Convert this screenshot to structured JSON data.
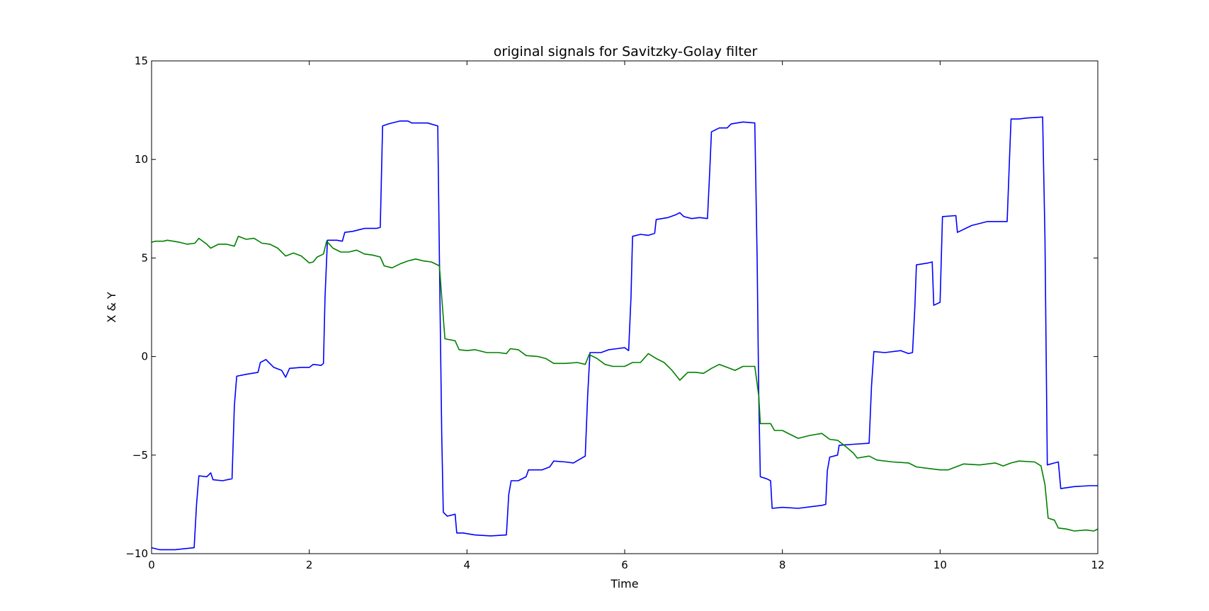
{
  "chart_data": {
    "type": "line",
    "title": "original signals for Savitzky-Golay filter",
    "xlabel": "Time",
    "ylabel": "X & Y",
    "xlim": [
      0,
      12
    ],
    "ylim": [
      -10,
      15
    ],
    "xticks": [
      0,
      2,
      4,
      6,
      8,
      10,
      12
    ],
    "yticks": [
      -10,
      -5,
      0,
      5,
      10,
      15
    ],
    "xtick_labels": [
      "0",
      "2",
      "4",
      "6",
      "8",
      "10",
      "12"
    ],
    "ytick_labels": [
      "−10",
      "−5",
      "0",
      "5",
      "10",
      "15"
    ],
    "grid": false,
    "legend": "none",
    "series": [
      {
        "color": "#0000ff",
        "points": [
          [
            0,
            -9.7
          ],
          [
            0.1,
            -9.8
          ],
          [
            0.3,
            -9.8
          ],
          [
            0.54,
            -9.7
          ],
          [
            0.57,
            -7.5
          ],
          [
            0.6,
            -6.05
          ],
          [
            0.7,
            -6.1
          ],
          [
            0.75,
            -5.9
          ],
          [
            0.78,
            -6.25
          ],
          [
            0.9,
            -6.3
          ],
          [
            1.02,
            -6.2
          ],
          [
            1.05,
            -2.5
          ],
          [
            1.08,
            -1.0
          ],
          [
            1.2,
            -0.9
          ],
          [
            1.35,
            -0.8
          ],
          [
            1.38,
            -0.3
          ],
          [
            1.45,
            -0.15
          ],
          [
            1.55,
            -0.55
          ],
          [
            1.65,
            -0.7
          ],
          [
            1.7,
            -1.05
          ],
          [
            1.75,
            -0.6
          ],
          [
            1.9,
            -0.55
          ],
          [
            2.0,
            -0.55
          ],
          [
            2.05,
            -0.4
          ],
          [
            2.15,
            -0.45
          ],
          [
            2.18,
            -0.35
          ],
          [
            2.2,
            3.0
          ],
          [
            2.23,
            5.9
          ],
          [
            2.35,
            5.9
          ],
          [
            2.42,
            5.85
          ],
          [
            2.45,
            6.3
          ],
          [
            2.55,
            6.35
          ],
          [
            2.7,
            6.5
          ],
          [
            2.85,
            6.5
          ],
          [
            2.9,
            6.55
          ],
          [
            2.93,
            11.7
          ],
          [
            3.0,
            11.8
          ],
          [
            3.15,
            11.95
          ],
          [
            3.25,
            11.95
          ],
          [
            3.3,
            11.85
          ],
          [
            3.5,
            11.85
          ],
          [
            3.63,
            11.7
          ],
          [
            3.65,
            5.0
          ],
          [
            3.68,
            -4.0
          ],
          [
            3.7,
            -7.9
          ],
          [
            3.75,
            -8.1
          ],
          [
            3.85,
            -8.0
          ],
          [
            3.87,
            -8.95
          ],
          [
            3.95,
            -8.95
          ],
          [
            4.1,
            -9.05
          ],
          [
            4.3,
            -9.1
          ],
          [
            4.5,
            -9.05
          ],
          [
            4.53,
            -7.0
          ],
          [
            4.56,
            -6.3
          ],
          [
            4.65,
            -6.3
          ],
          [
            4.75,
            -6.1
          ],
          [
            4.78,
            -5.75
          ],
          [
            4.95,
            -5.75
          ],
          [
            5.05,
            -5.6
          ],
          [
            5.1,
            -5.3
          ],
          [
            5.25,
            -5.35
          ],
          [
            5.35,
            -5.4
          ],
          [
            5.5,
            -5.05
          ],
          [
            5.53,
            -2.0
          ],
          [
            5.56,
            0.2
          ],
          [
            5.7,
            0.2
          ],
          [
            5.8,
            0.35
          ],
          [
            5.9,
            0.4
          ],
          [
            6.0,
            0.45
          ],
          [
            6.05,
            0.3
          ],
          [
            6.08,
            3.0
          ],
          [
            6.1,
            6.1
          ],
          [
            6.2,
            6.2
          ],
          [
            6.3,
            6.15
          ],
          [
            6.38,
            6.25
          ],
          [
            6.4,
            6.95
          ],
          [
            6.55,
            7.05
          ],
          [
            6.65,
            7.2
          ],
          [
            6.7,
            7.3
          ],
          [
            6.75,
            7.1
          ],
          [
            6.85,
            7.0
          ],
          [
            6.95,
            7.05
          ],
          [
            7.05,
            7.0
          ],
          [
            7.08,
            9.5
          ],
          [
            7.1,
            11.4
          ],
          [
            7.2,
            11.6
          ],
          [
            7.3,
            11.6
          ],
          [
            7.35,
            11.8
          ],
          [
            7.5,
            11.9
          ],
          [
            7.65,
            11.85
          ],
          [
            7.68,
            5.0
          ],
          [
            7.7,
            -2.0
          ],
          [
            7.72,
            -6.1
          ],
          [
            7.8,
            -6.2
          ],
          [
            7.85,
            -6.3
          ],
          [
            7.87,
            -7.7
          ],
          [
            8.0,
            -7.65
          ],
          [
            8.2,
            -7.7
          ],
          [
            8.5,
            -7.55
          ],
          [
            8.55,
            -7.5
          ],
          [
            8.57,
            -5.8
          ],
          [
            8.6,
            -5.1
          ],
          [
            8.7,
            -5.0
          ],
          [
            8.72,
            -4.5
          ],
          [
            8.9,
            -4.45
          ],
          [
            9.1,
            -4.4
          ],
          [
            9.13,
            -1.5
          ],
          [
            9.16,
            0.25
          ],
          [
            9.3,
            0.2
          ],
          [
            9.5,
            0.3
          ],
          [
            9.6,
            0.15
          ],
          [
            9.65,
            0.2
          ],
          [
            9.68,
            2.5
          ],
          [
            9.7,
            4.65
          ],
          [
            9.85,
            4.75
          ],
          [
            9.9,
            4.8
          ],
          [
            9.92,
            2.6
          ],
          [
            10.0,
            2.75
          ],
          [
            10.03,
            7.1
          ],
          [
            10.2,
            7.15
          ],
          [
            10.22,
            6.3
          ],
          [
            10.4,
            6.65
          ],
          [
            10.6,
            6.85
          ],
          [
            10.85,
            6.85
          ],
          [
            10.88,
            10.0
          ],
          [
            10.9,
            12.05
          ],
          [
            11.0,
            12.05
          ],
          [
            11.1,
            12.1
          ],
          [
            11.3,
            12.15
          ],
          [
            11.33,
            6.0
          ],
          [
            11.36,
            -5.5
          ],
          [
            11.45,
            -5.4
          ],
          [
            11.5,
            -5.35
          ],
          [
            11.53,
            -6.7
          ],
          [
            11.7,
            -6.6
          ],
          [
            11.9,
            -6.55
          ],
          [
            12.0,
            -6.55
          ]
        ]
      },
      {
        "color": "#008000",
        "points": [
          [
            0,
            5.8
          ],
          [
            0.05,
            5.85
          ],
          [
            0.15,
            5.85
          ],
          [
            0.2,
            5.9
          ],
          [
            0.35,
            5.8
          ],
          [
            0.45,
            5.7
          ],
          [
            0.55,
            5.75
          ],
          [
            0.6,
            6.0
          ],
          [
            0.7,
            5.7
          ],
          [
            0.75,
            5.5
          ],
          [
            0.85,
            5.7
          ],
          [
            0.95,
            5.7
          ],
          [
            1.05,
            5.6
          ],
          [
            1.1,
            6.1
          ],
          [
            1.2,
            5.95
          ],
          [
            1.3,
            6.0
          ],
          [
            1.4,
            5.75
          ],
          [
            1.5,
            5.7
          ],
          [
            1.6,
            5.5
          ],
          [
            1.7,
            5.1
          ],
          [
            1.8,
            5.25
          ],
          [
            1.9,
            5.1
          ],
          [
            2.0,
            4.75
          ],
          [
            2.05,
            4.8
          ],
          [
            2.1,
            5.05
          ],
          [
            2.18,
            5.2
          ],
          [
            2.22,
            5.85
          ],
          [
            2.3,
            5.5
          ],
          [
            2.4,
            5.3
          ],
          [
            2.5,
            5.3
          ],
          [
            2.6,
            5.4
          ],
          [
            2.7,
            5.2
          ],
          [
            2.8,
            5.15
          ],
          [
            2.9,
            5.05
          ],
          [
            2.95,
            4.6
          ],
          [
            3.05,
            4.5
          ],
          [
            3.15,
            4.7
          ],
          [
            3.25,
            4.85
          ],
          [
            3.35,
            4.95
          ],
          [
            3.45,
            4.85
          ],
          [
            3.55,
            4.8
          ],
          [
            3.65,
            4.6
          ],
          [
            3.68,
            3.0
          ],
          [
            3.72,
            0.9
          ],
          [
            3.85,
            0.8
          ],
          [
            3.9,
            0.35
          ],
          [
            4.0,
            0.3
          ],
          [
            4.1,
            0.35
          ],
          [
            4.25,
            0.2
          ],
          [
            4.4,
            0.2
          ],
          [
            4.5,
            0.15
          ],
          [
            4.55,
            0.4
          ],
          [
            4.65,
            0.35
          ],
          [
            4.75,
            0.05
          ],
          [
            4.9,
            0.0
          ],
          [
            5.0,
            -0.1
          ],
          [
            5.1,
            -0.35
          ],
          [
            5.25,
            -0.35
          ],
          [
            5.4,
            -0.3
          ],
          [
            5.5,
            -0.4
          ],
          [
            5.55,
            0.1
          ],
          [
            5.65,
            -0.1
          ],
          [
            5.75,
            -0.4
          ],
          [
            5.85,
            -0.5
          ],
          [
            6.0,
            -0.5
          ],
          [
            6.1,
            -0.3
          ],
          [
            6.2,
            -0.3
          ],
          [
            6.3,
            0.15
          ],
          [
            6.4,
            -0.1
          ],
          [
            6.5,
            -0.3
          ],
          [
            6.6,
            -0.7
          ],
          [
            6.7,
            -1.2
          ],
          [
            6.8,
            -0.8
          ],
          [
            6.9,
            -0.8
          ],
          [
            7.0,
            -0.85
          ],
          [
            7.1,
            -0.6
          ],
          [
            7.2,
            -0.4
          ],
          [
            7.3,
            -0.55
          ],
          [
            7.4,
            -0.7
          ],
          [
            7.5,
            -0.5
          ],
          [
            7.65,
            -0.5
          ],
          [
            7.7,
            -2.0
          ],
          [
            7.72,
            -3.4
          ],
          [
            7.85,
            -3.4
          ],
          [
            7.9,
            -3.75
          ],
          [
            8.0,
            -3.75
          ],
          [
            8.1,
            -3.95
          ],
          [
            8.2,
            -4.15
          ],
          [
            8.35,
            -4.0
          ],
          [
            8.5,
            -3.9
          ],
          [
            8.6,
            -4.2
          ],
          [
            8.7,
            -4.25
          ],
          [
            8.8,
            -4.55
          ],
          [
            8.9,
            -4.9
          ],
          [
            8.95,
            -5.15
          ],
          [
            9.1,
            -5.05
          ],
          [
            9.2,
            -5.25
          ],
          [
            9.4,
            -5.35
          ],
          [
            9.6,
            -5.4
          ],
          [
            9.7,
            -5.6
          ],
          [
            9.9,
            -5.7
          ],
          [
            10.0,
            -5.75
          ],
          [
            10.1,
            -5.75
          ],
          [
            10.2,
            -5.6
          ],
          [
            10.3,
            -5.45
          ],
          [
            10.5,
            -5.5
          ],
          [
            10.7,
            -5.4
          ],
          [
            10.8,
            -5.55
          ],
          [
            10.9,
            -5.4
          ],
          [
            11.0,
            -5.3
          ],
          [
            11.2,
            -5.35
          ],
          [
            11.28,
            -5.55
          ],
          [
            11.33,
            -6.5
          ],
          [
            11.37,
            -8.2
          ],
          [
            11.45,
            -8.3
          ],
          [
            11.5,
            -8.7
          ],
          [
            11.6,
            -8.75
          ],
          [
            11.7,
            -8.85
          ],
          [
            11.85,
            -8.8
          ],
          [
            11.95,
            -8.85
          ],
          [
            12.0,
            -8.75
          ]
        ]
      }
    ]
  }
}
